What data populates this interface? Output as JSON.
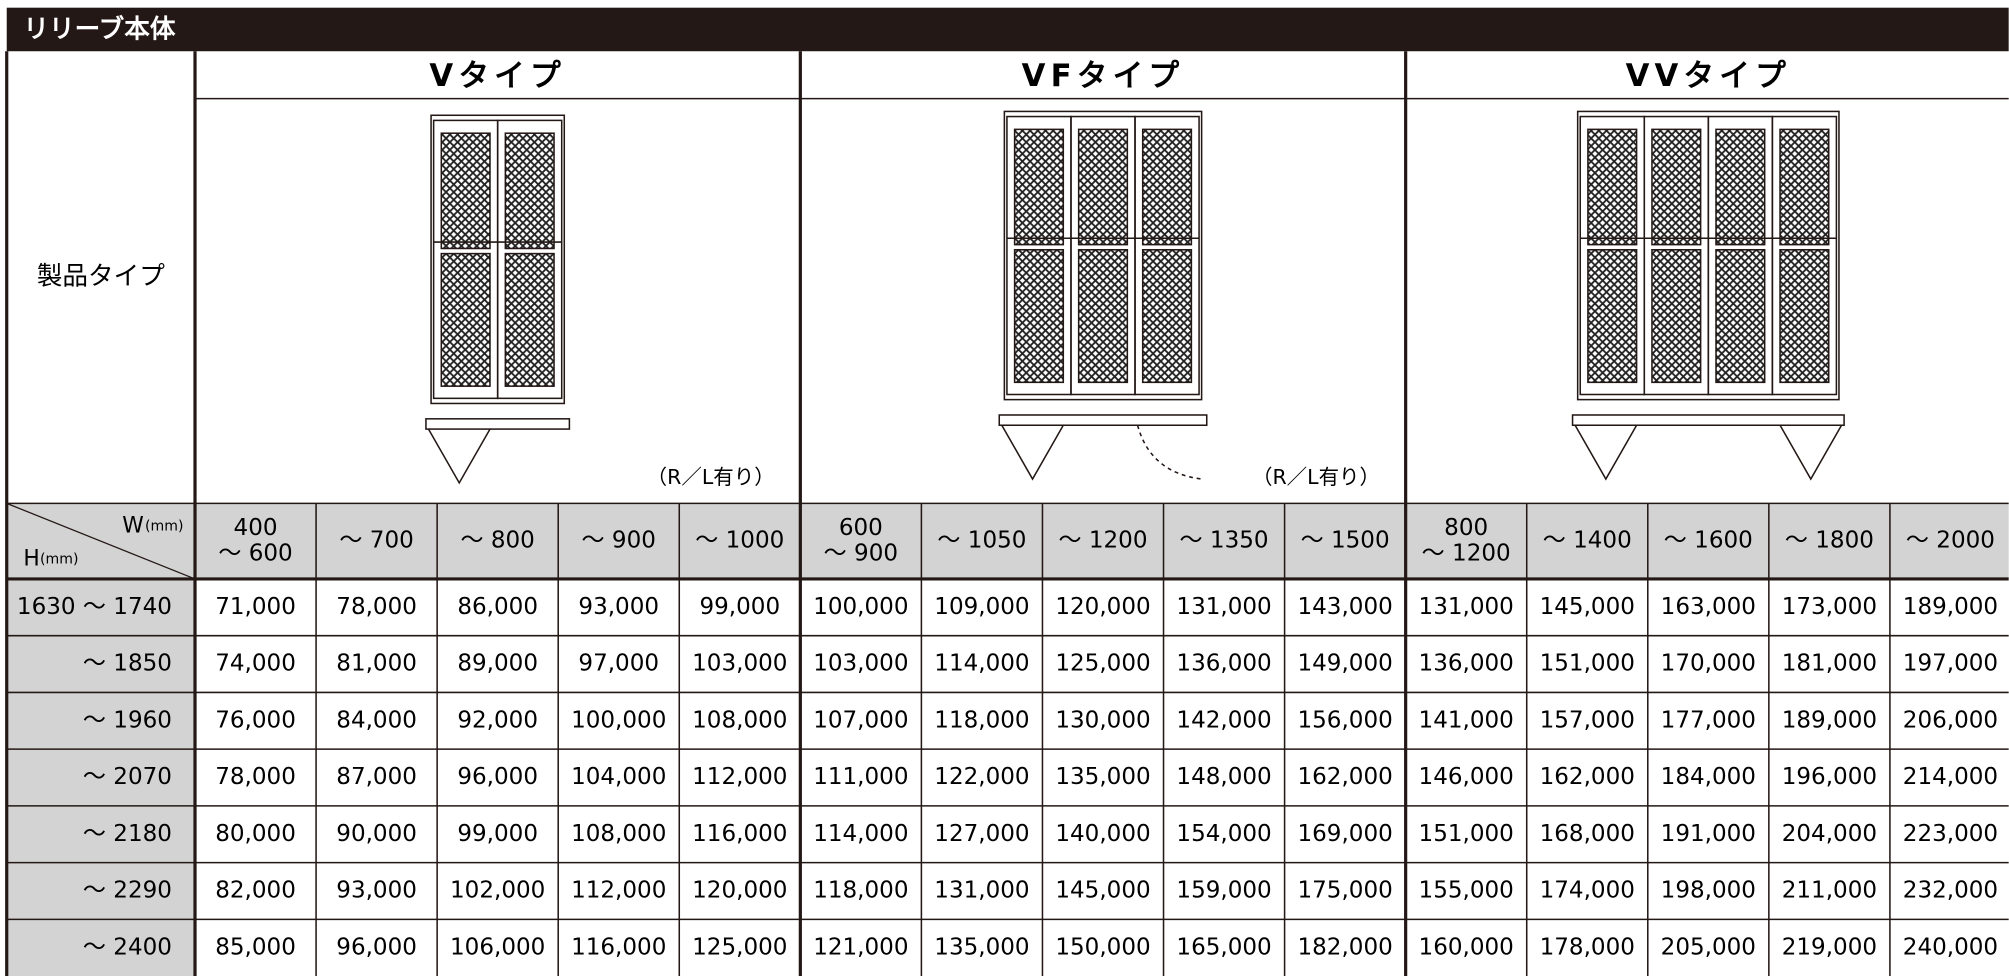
{
  "header": {
    "title": "リリーブ本体"
  },
  "table": {
    "product_type_label": "製品タイプ",
    "corner": {
      "w": "W",
      "w_unit": "(mm)",
      "h": "H",
      "h_unit": "(mm)"
    },
    "groups": [
      {
        "name": "Vタイプ",
        "note": "（R／L有り）",
        "widths": [
          [
            "400",
            "～ 600"
          ],
          [
            "～ 700"
          ],
          [
            "～ 800"
          ],
          [
            "～ 900"
          ],
          [
            "～ 1000"
          ]
        ]
      },
      {
        "name": "VFタイプ",
        "note": "（R／L有り）",
        "widths": [
          [
            "600",
            "～ 900"
          ],
          [
            "～ 1050"
          ],
          [
            "～ 1200"
          ],
          [
            "～ 1350"
          ],
          [
            "～ 1500"
          ]
        ]
      },
      {
        "name": "VVタイプ",
        "widths": [
          [
            "800",
            "～ 1200"
          ],
          [
            "～ 1400"
          ],
          [
            "～ 1600"
          ],
          [
            "～ 1800"
          ],
          [
            "～ 2000"
          ]
        ]
      }
    ],
    "rows": [
      {
        "height": "1630 ～ 1740",
        "prices": [
          "71,000",
          "78,000",
          "86,000",
          "93,000",
          "99,000",
          "100,000",
          "109,000",
          "120,000",
          "131,000",
          "143,000",
          "131,000",
          "145,000",
          "163,000",
          "173,000",
          "189,000"
        ]
      },
      {
        "height": "～ 1850",
        "prices": [
          "74,000",
          "81,000",
          "89,000",
          "97,000",
          "103,000",
          "103,000",
          "114,000",
          "125,000",
          "136,000",
          "149,000",
          "136,000",
          "151,000",
          "170,000",
          "181,000",
          "197,000"
        ]
      },
      {
        "height": "～ 1960",
        "prices": [
          "76,000",
          "84,000",
          "92,000",
          "100,000",
          "108,000",
          "107,000",
          "118,000",
          "130,000",
          "142,000",
          "156,000",
          "141,000",
          "157,000",
          "177,000",
          "189,000",
          "206,000"
        ]
      },
      {
        "height": "～ 2070",
        "prices": [
          "78,000",
          "87,000",
          "96,000",
          "104,000",
          "112,000",
          "111,000",
          "122,000",
          "135,000",
          "148,000",
          "162,000",
          "146,000",
          "162,000",
          "184,000",
          "196,000",
          "214,000"
        ]
      },
      {
        "height": "～ 2180",
        "prices": [
          "80,000",
          "90,000",
          "99,000",
          "108,000",
          "116,000",
          "114,000",
          "127,000",
          "140,000",
          "154,000",
          "169,000",
          "151,000",
          "168,000",
          "191,000",
          "204,000",
          "223,000"
        ]
      },
      {
        "height": "～ 2290",
        "prices": [
          "82,000",
          "93,000",
          "102,000",
          "112,000",
          "120,000",
          "118,000",
          "131,000",
          "145,000",
          "159,000",
          "175,000",
          "155,000",
          "174,000",
          "198,000",
          "211,000",
          "232,000"
        ]
      },
      {
        "height": "～ 2400",
        "prices": [
          "85,000",
          "96,000",
          "106,000",
          "116,000",
          "125,000",
          "121,000",
          "135,000",
          "150,000",
          "165,000",
          "182,000",
          "160,000",
          "178,000",
          "205,000",
          "219,000",
          "240,000"
        ]
      }
    ]
  }
}
